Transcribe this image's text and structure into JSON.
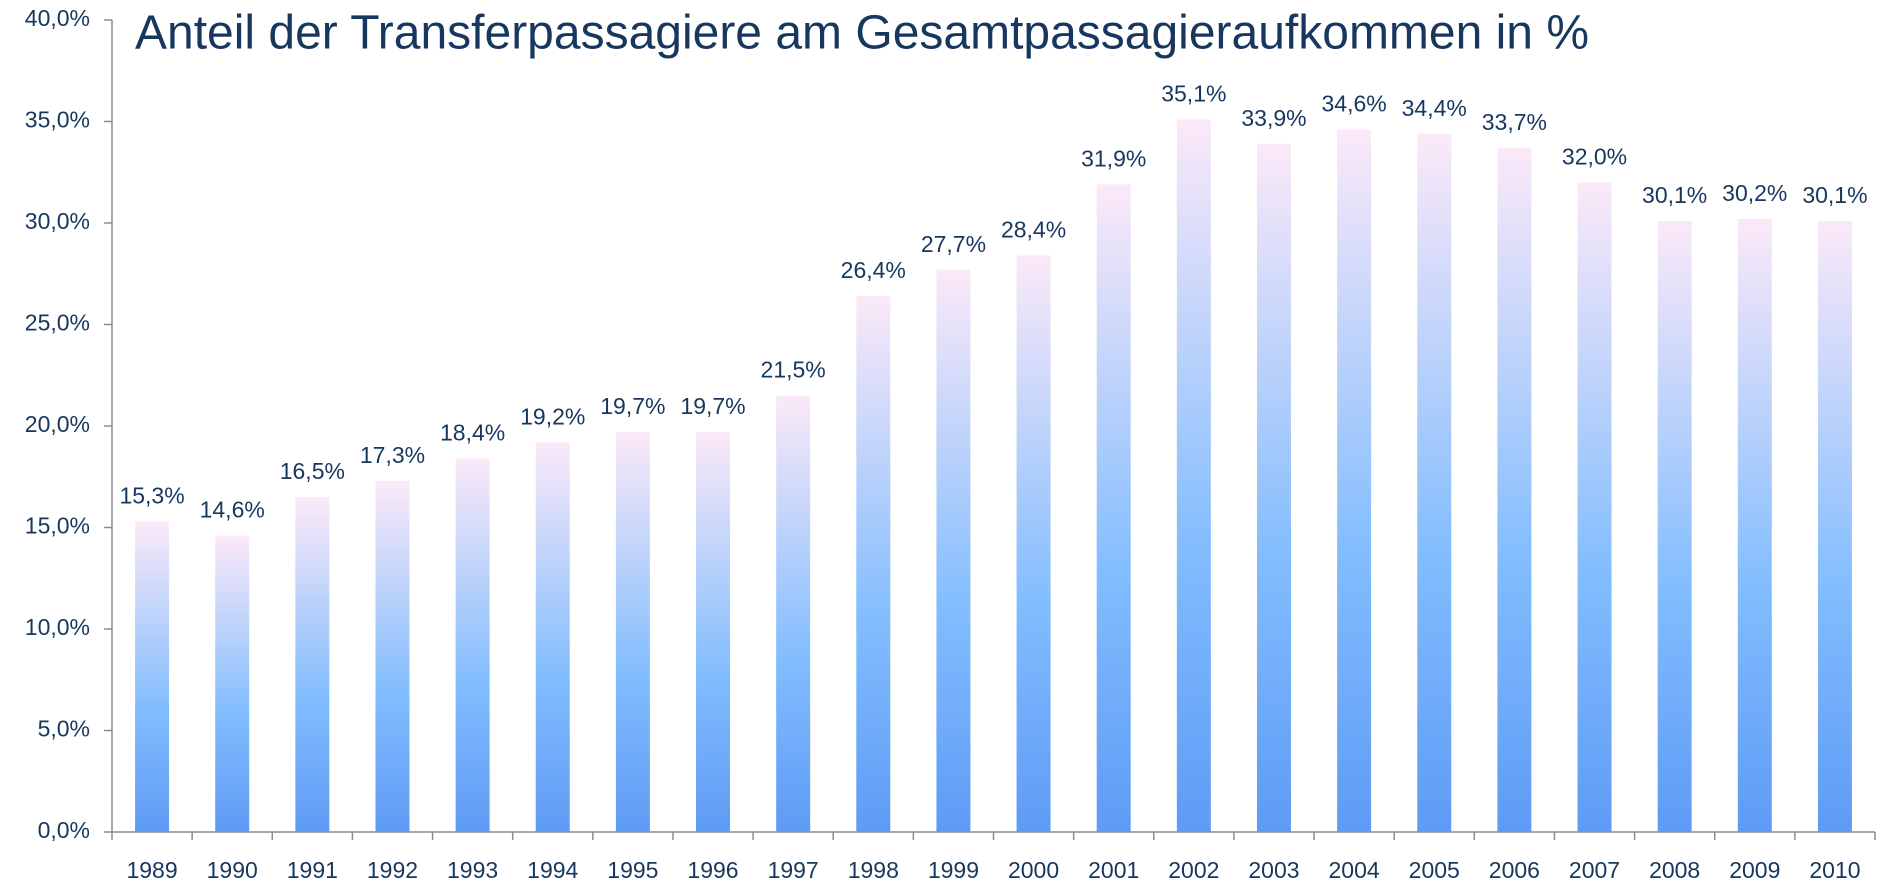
{
  "chart_data": {
    "type": "bar",
    "title": "Anteil der Transferpassagiere am Gesamtpassagieraufkommen in %",
    "categories": [
      "1989",
      "1990",
      "1991",
      "1992",
      "1993",
      "1994",
      "1995",
      "1996",
      "1997",
      "1998",
      "1999",
      "2000",
      "2001",
      "2002",
      "2003",
      "2004",
      "2005",
      "2006",
      "2007",
      "2008",
      "2009",
      "2010"
    ],
    "values": [
      15.3,
      14.6,
      16.5,
      17.3,
      18.4,
      19.2,
      19.7,
      19.7,
      21.5,
      26.4,
      27.7,
      28.4,
      31.9,
      35.1,
      33.9,
      34.6,
      34.4,
      33.7,
      32.0,
      30.1,
      30.2,
      30.1
    ],
    "value_labels": [
      "15,3%",
      "14,6%",
      "16,5%",
      "17,3%",
      "18,4%",
      "19,2%",
      "19,7%",
      "19,7%",
      "21,5%",
      "26,4%",
      "27,7%",
      "28,4%",
      "31,9%",
      "35,1%",
      "33,9%",
      "34,6%",
      "34,4%",
      "33,7%",
      "32,0%",
      "30,1%",
      "30,2%",
      "30,1%"
    ],
    "color": [
      "#fbe9f8",
      "#82bdfe",
      "#5e9bf5"
    ],
    "ylim": [
      0,
      40
    ],
    "yticks": [
      {
        "value": 0,
        "label": "0,0%"
      },
      {
        "value": 5,
        "label": "5,0%"
      },
      {
        "value": 10,
        "label": "10,0%"
      },
      {
        "value": 15,
        "label": "15,0%"
      },
      {
        "value": 20,
        "label": "20,0%"
      },
      {
        "value": 25,
        "label": "25,0%"
      },
      {
        "value": 30,
        "label": "30,0%"
      },
      {
        "value": 35,
        "label": "35,0%"
      },
      {
        "value": 40,
        "label": "40,0%"
      }
    ],
    "grid": false
  }
}
